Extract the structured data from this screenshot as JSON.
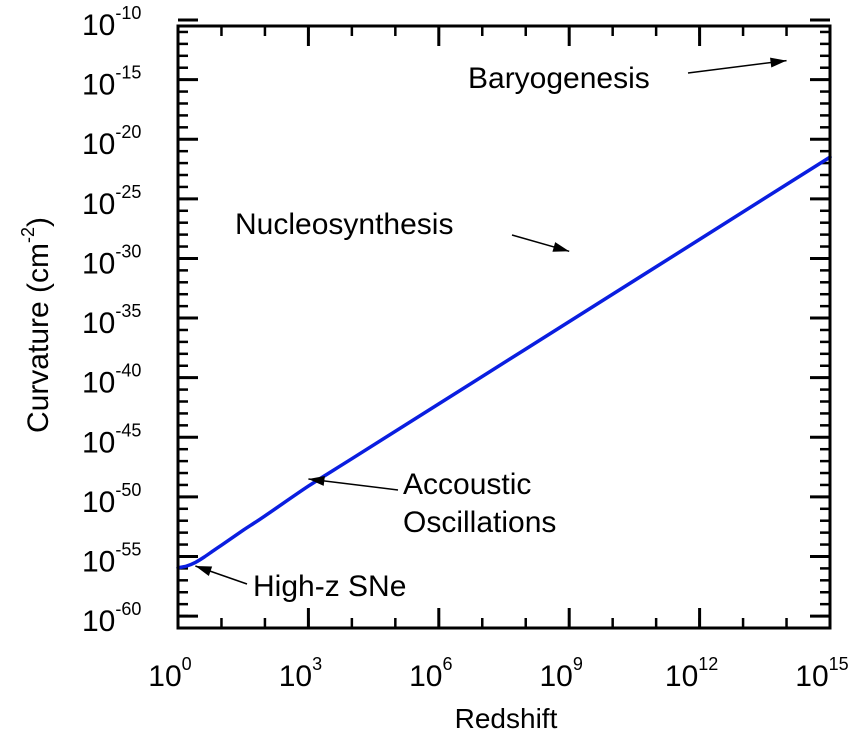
{
  "chart_data": {
    "type": "line",
    "xlabel": "Redshift",
    "ylabel_main": "Curvature (cm",
    "ylabel_sup": "-2",
    "ylabel_close": ")",
    "x_log": true,
    "y_log": true,
    "xlim_exp": [
      0,
      15
    ],
    "ylim_exp": [
      -61,
      -10.5
    ],
    "x_ticks": [
      {
        "base": "10",
        "exp": "0",
        "value_exp": 0
      },
      {
        "base": "10",
        "exp": "3",
        "value_exp": 3
      },
      {
        "base": "10",
        "exp": "6",
        "value_exp": 6
      },
      {
        "base": "10",
        "exp": "9",
        "value_exp": 9
      },
      {
        "base": "10",
        "exp": "12",
        "value_exp": 12
      },
      {
        "base": "10",
        "exp": "15",
        "value_exp": 15
      }
    ],
    "y_ticks": [
      {
        "base": "10",
        "exp": "-10",
        "value_exp": -10
      },
      {
        "base": "10",
        "exp": "-15",
        "value_exp": -15
      },
      {
        "base": "10",
        "exp": "-20",
        "value_exp": -20
      },
      {
        "base": "10",
        "exp": "-25",
        "value_exp": -25
      },
      {
        "base": "10",
        "exp": "-30",
        "value_exp": -30
      },
      {
        "base": "10",
        "exp": "-35",
        "value_exp": -35
      },
      {
        "base": "10",
        "exp": "-40",
        "value_exp": -40
      },
      {
        "base": "10",
        "exp": "-45",
        "value_exp": -45
      },
      {
        "base": "10",
        "exp": "-50",
        "value_exp": -50
      },
      {
        "base": "10",
        "exp": "-55",
        "value_exp": -55
      },
      {
        "base": "10",
        "exp": "-60",
        "value_exp": -60
      }
    ],
    "series": [
      {
        "color": "#0a1ee0",
        "log10_x": [
          0,
          0.2,
          0.4,
          0.6,
          0.8,
          1.0,
          1.5,
          2.0,
          3.0,
          4.0,
          6.0,
          9.0,
          12.0,
          14.0,
          15.0
        ],
        "log10_y": [
          -55.95,
          -55.8,
          -55.5,
          -55.05,
          -54.55,
          -54.05,
          -52.8,
          -51.6,
          -49.1,
          -46.8,
          -42.2,
          -35.3,
          -28.4,
          -23.8,
          -21.5
        ]
      }
    ],
    "annotations": [
      {
        "lines": [
          "Baryogenesis"
        ],
        "target_log10_x": 14.0,
        "target_log10_y": -13.4
      },
      {
        "lines": [
          "Nucleosynthesis"
        ],
        "target_log10_x": 9.0,
        "target_log10_y": -29.4
      },
      {
        "lines": [
          "Accoustic",
          "Oscillations"
        ],
        "target_log10_x": 3.0,
        "target_log10_y": -48.5
      },
      {
        "lines": [
          "High-z SNe"
        ],
        "target_log10_x": 0.4,
        "target_log10_y": -55.8
      }
    ]
  }
}
